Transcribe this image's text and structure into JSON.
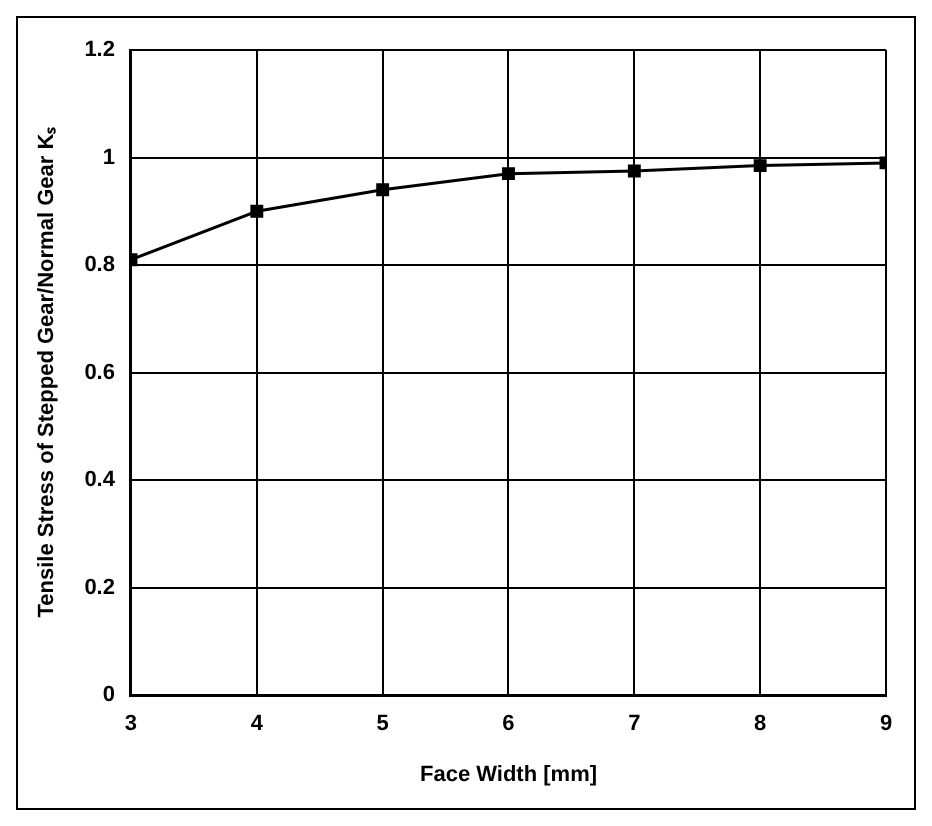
{
  "chart_data": {
    "type": "line",
    "xlabel": "Face Width [mm]",
    "ylabel": "Tensile Stress of Stepped Gear/Normal Gear Kₛ",
    "x": [
      3,
      4,
      5,
      6,
      7,
      8,
      9
    ],
    "series": [
      {
        "color": "#000000",
        "values": [
          0.81,
          0.9,
          0.94,
          0.97,
          0.975,
          0.985,
          0.99
        ]
      }
    ],
    "xlim": [
      3,
      9
    ],
    "xticks": [
      3,
      4,
      5,
      6,
      7,
      8,
      9
    ],
    "ylim": [
      0,
      1.2
    ],
    "yticks": [
      0,
      0.2,
      0.4,
      0.6,
      0.8,
      1,
      1.2
    ],
    "grid": true,
    "marker": "square",
    "line_style": "solid"
  }
}
